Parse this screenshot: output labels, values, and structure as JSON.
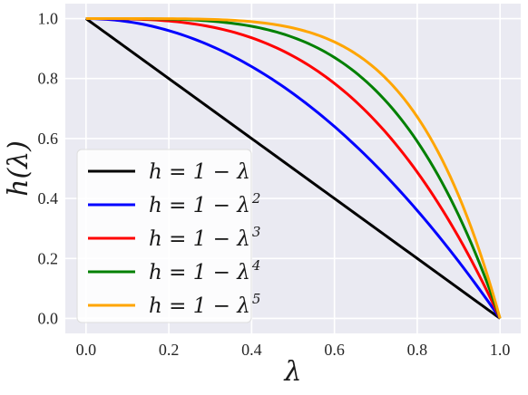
{
  "chart_data": {
    "type": "line",
    "title": "",
    "xlabel": "λ",
    "ylabel": "h(λ)",
    "xlim": [
      -0.05,
      1.05
    ],
    "ylim": [
      -0.05,
      1.05
    ],
    "xticks": [
      0.0,
      0.2,
      0.4,
      0.6,
      0.8,
      1.0
    ],
    "yticks": [
      0.0,
      0.2,
      0.4,
      0.6,
      0.8,
      1.0
    ],
    "xtick_labels": [
      "0.0",
      "0.2",
      "0.4",
      "0.6",
      "0.8",
      "1.0"
    ],
    "ytick_labels": [
      "0.0",
      "0.2",
      "0.4",
      "0.6",
      "0.8",
      "1.0"
    ],
    "grid": true,
    "legend_position": "lower-left",
    "x": [
      0.0,
      0.05,
      0.1,
      0.15,
      0.2,
      0.25,
      0.3,
      0.35,
      0.4,
      0.45,
      0.5,
      0.55,
      0.6,
      0.65,
      0.7,
      0.75,
      0.8,
      0.85,
      0.9,
      0.95,
      1.0
    ],
    "series": [
      {
        "name": "h = 1 − λ",
        "base": "h = 1 − λ",
        "power": "",
        "color": "#000000",
        "values": [
          1.0,
          0.95,
          0.9,
          0.85,
          0.8,
          0.75,
          0.7,
          0.65,
          0.6,
          0.55,
          0.5,
          0.45,
          0.4,
          0.35,
          0.3,
          0.25,
          0.2,
          0.15,
          0.1,
          0.05,
          0.0
        ]
      },
      {
        "name": "h = 1 − λ2",
        "base": "h = 1 − λ",
        "power": "2",
        "color": "#0000ff",
        "values": [
          1.0,
          0.9975,
          0.99,
          0.9775,
          0.96,
          0.9375,
          0.91,
          0.8775,
          0.84,
          0.7975,
          0.75,
          0.6975,
          0.64,
          0.5775,
          0.51,
          0.4375,
          0.36,
          0.2775,
          0.19,
          0.0975,
          0.0
        ]
      },
      {
        "name": "h = 1 − λ3",
        "base": "h = 1 − λ",
        "power": "3",
        "color": "#ff0000",
        "values": [
          1.0,
          0.99988,
          0.999,
          0.99663,
          0.992,
          0.98438,
          0.973,
          0.95713,
          0.936,
          0.90888,
          0.875,
          0.83363,
          0.784,
          0.72538,
          0.657,
          0.57813,
          0.488,
          0.38588,
          0.271,
          0.14263,
          0.0
        ]
      },
      {
        "name": "h = 1 − λ4",
        "base": "h = 1 − λ",
        "power": "4",
        "color": "#008000",
        "values": [
          1.0,
          0.99999,
          0.9999,
          0.99949,
          0.9984,
          0.99609,
          0.9919,
          0.98499,
          0.9744,
          0.959,
          0.9375,
          0.9085,
          0.8704,
          0.8215,
          0.7599,
          0.6836,
          0.5904,
          0.478,
          0.3439,
          0.1855,
          0.0
        ]
      },
      {
        "name": "h = 1 − λ5",
        "base": "h = 1 − λ",
        "power": "5",
        "color": "#ffa500",
        "values": [
          1.0,
          1.0,
          0.99999,
          0.99992,
          0.99968,
          0.99902,
          0.99757,
          0.99475,
          0.98976,
          0.98155,
          0.96875,
          0.94967,
          0.92224,
          0.88397,
          0.83193,
          0.7627,
          0.67232,
          0.55629,
          0.40951,
          0.22622,
          0.0
        ]
      }
    ]
  }
}
